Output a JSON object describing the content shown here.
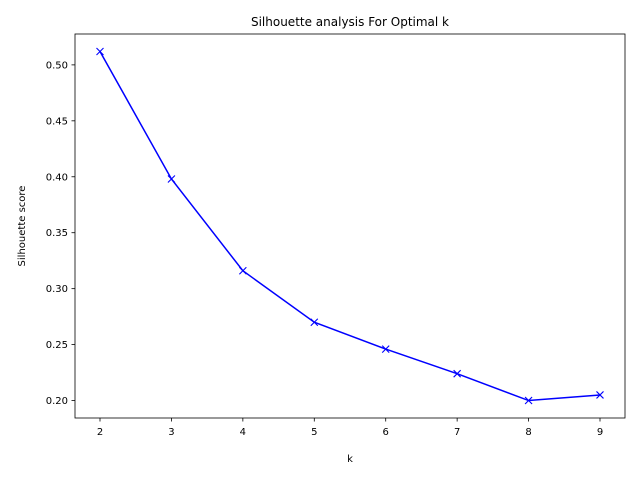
{
  "chart_data": {
    "type": "line",
    "title": "Silhouette analysis For Optimal k",
    "xlabel": "k",
    "ylabel": "Silhouette score",
    "x": [
      2,
      3,
      4,
      5,
      6,
      7,
      8,
      9
    ],
    "series": [
      {
        "values": [
          0.512,
          0.398,
          0.316,
          0.27,
          0.246,
          0.224,
          0.2,
          0.205
        ],
        "color": "#0000ff",
        "marker": "x"
      }
    ],
    "xticks": [
      "2",
      "3",
      "4",
      "5",
      "6",
      "7",
      "8",
      "9"
    ],
    "yticks": [
      "0.20",
      "0.25",
      "0.30",
      "0.35",
      "0.40",
      "0.45",
      "0.50"
    ],
    "xlim": [
      1.65,
      9.35
    ],
    "ylim": [
      0.1844,
      0.5276
    ],
    "grid": false,
    "legend": "none"
  }
}
